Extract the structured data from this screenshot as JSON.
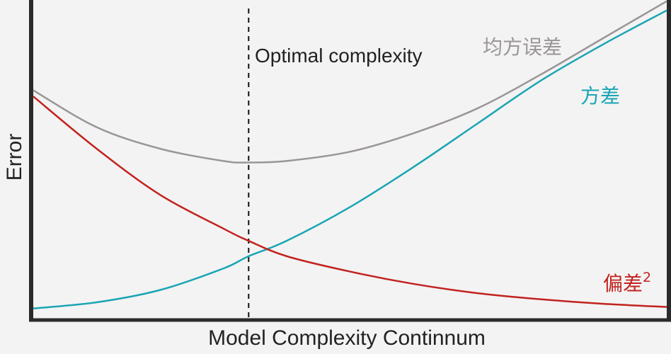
{
  "chart_data": {
    "type": "line",
    "title": "",
    "xlabel": "Model Complexity Continnum",
    "ylabel": "Error",
    "xlim": [
      0,
      1
    ],
    "ylim": [
      0,
      1
    ],
    "grid": false,
    "annotations": [
      {
        "text": "Optimal complexity",
        "x": 0.34
      }
    ],
    "series": [
      {
        "name": "均方误差",
        "color": "#9a9597",
        "x": [
          0,
          0.1,
          0.2,
          0.3,
          0.34,
          0.4,
          0.5,
          0.6,
          0.7,
          0.8,
          0.9,
          1.0
        ],
        "y": [
          0.72,
          0.6,
          0.53,
          0.49,
          0.485,
          0.49,
          0.52,
          0.58,
          0.66,
          0.77,
          0.89,
          1.01
        ]
      },
      {
        "name": "方差",
        "color": "#1aa5b5",
        "x": [
          0,
          0.1,
          0.2,
          0.3,
          0.34,
          0.4,
          0.5,
          0.6,
          0.7,
          0.8,
          0.9,
          1.0
        ],
        "y": [
          0.01,
          0.03,
          0.07,
          0.14,
          0.18,
          0.23,
          0.34,
          0.47,
          0.61,
          0.75,
          0.87,
          0.98
        ]
      },
      {
        "name": "偏差",
        "superscript": "2",
        "color": "#c2231f",
        "x": [
          0,
          0.1,
          0.2,
          0.3,
          0.34,
          0.4,
          0.5,
          0.6,
          0.7,
          0.8,
          0.9,
          1.0
        ],
        "y": [
          0.7,
          0.53,
          0.38,
          0.27,
          0.23,
          0.18,
          0.13,
          0.09,
          0.06,
          0.04,
          0.025,
          0.015
        ]
      }
    ]
  }
}
